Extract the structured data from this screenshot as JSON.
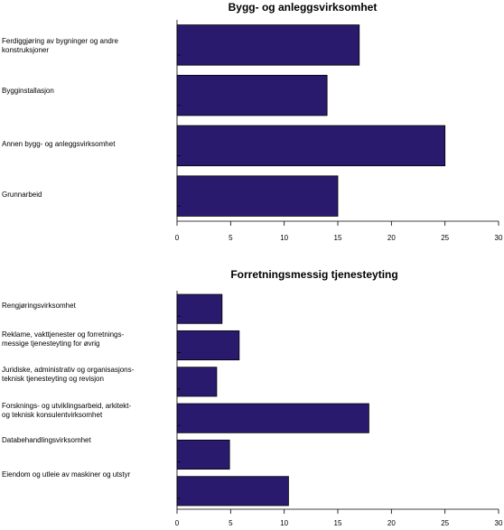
{
  "chart_data": [
    {
      "type": "bar",
      "orientation": "horizontal",
      "title": "Bygg- og anleggsvirksomhet",
      "categories": [
        [
          "Ferdiggjøring av bygninger og andre",
          "konstruksjoner"
        ],
        [
          "Bygginstallasjon"
        ],
        [
          "Annen bygg- og anleggsvirksomhet"
        ],
        [
          "Grunnarbeid"
        ]
      ],
      "values": [
        17,
        14,
        25,
        15
      ],
      "xlim": [
        0,
        30
      ],
      "xticks": [
        0,
        5,
        10,
        15,
        20,
        25,
        30
      ],
      "bar_color": "#2a1a6e",
      "grid": false
    },
    {
      "type": "bar",
      "orientation": "horizontal",
      "title": "Forretningsmessig tjenesteyting",
      "categories": [
        [
          "Rengjøringsvirksomhet"
        ],
        [
          "Reklame, vakttjenester og forretnings-",
          "messige tjenesteyting for øvrig"
        ],
        [
          "Juridiske, administrativ og organisasjons-",
          "teknisk tjenesteyting og revisjon"
        ],
        [
          "Forsknings- og utviklingsarbeid, arkitekt-",
          "og teknisk konsulentvirksomhet"
        ],
        [
          "Databehandlingsvirksomhet"
        ],
        [
          "Eiendom og utleie av maskiner og utstyr"
        ]
      ],
      "values": [
        4.2,
        5.8,
        3.7,
        17.9,
        4.9,
        10.4
      ],
      "xlim": [
        0,
        30
      ],
      "xticks": [
        0,
        5,
        10,
        15,
        20,
        25,
        30
      ],
      "bar_color": "#2a1a6e",
      "grid": false
    }
  ]
}
